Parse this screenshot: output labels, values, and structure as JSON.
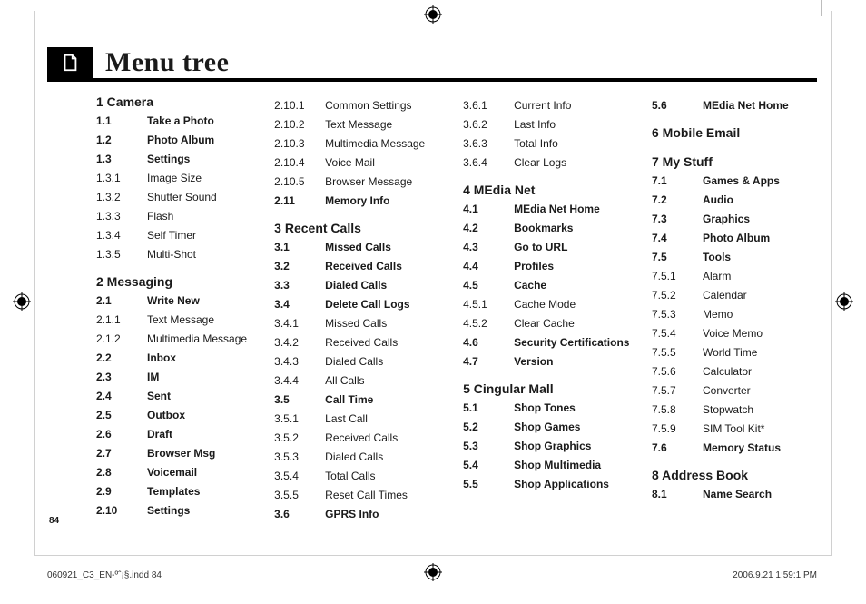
{
  "header": {
    "title": "Menu tree"
  },
  "page_number": "84",
  "footer": {
    "left": "060921_C3_EN-ºˆ¡§.indd   84",
    "right": "2006.9.21   1:59:1 PM"
  },
  "columns": [
    {
      "width_class": "col-1",
      "sections": [
        {
          "title": "1 Camera",
          "first": true,
          "items": [
            {
              "num": "1.1",
              "label": "Take a Photo",
              "bold": true
            },
            {
              "num": "1.2",
              "label": "Photo Album",
              "bold": true
            },
            {
              "num": "1.3",
              "label": "Settings",
              "bold": true
            },
            {
              "num": "1.3.1",
              "label": "Image Size",
              "bold": false
            },
            {
              "num": "1.3.2",
              "label": "Shutter Sound",
              "bold": false
            },
            {
              "num": "1.3.3",
              "label": "Flash",
              "bold": false
            },
            {
              "num": "1.3.4",
              "label": "Self Timer",
              "bold": false
            },
            {
              "num": "1.3.5",
              "label": "Multi-Shot",
              "bold": false
            }
          ]
        },
        {
          "title": "2 Messaging",
          "items": [
            {
              "num": "2.1",
              "label": "Write New",
              "bold": true
            },
            {
              "num": "2.1.1",
              "label": "Text Message",
              "bold": false
            },
            {
              "num": "2.1.2",
              "label": "Multimedia Message",
              "bold": false
            },
            {
              "num": "2.2",
              "label": "Inbox",
              "bold": true
            },
            {
              "num": "2.3",
              "label": "IM",
              "bold": true
            },
            {
              "num": "2.4",
              "label": "Sent",
              "bold": true
            },
            {
              "num": "2.5",
              "label": "Outbox",
              "bold": true
            },
            {
              "num": "2.6",
              "label": "Draft",
              "bold": true
            },
            {
              "num": "2.7",
              "label": "Browser Msg",
              "bold": true
            },
            {
              "num": "2.8",
              "label": "Voicemail",
              "bold": true
            },
            {
              "num": "2.9",
              "label": "Templates",
              "bold": true
            },
            {
              "num": "2.10",
              "label": "Settings",
              "bold": true
            }
          ]
        }
      ]
    },
    {
      "width_class": "col-2",
      "sections": [
        {
          "title": "",
          "first": true,
          "items": [
            {
              "num": "2.10.1",
              "label": "Common Settings",
              "bold": false
            },
            {
              "num": "2.10.2",
              "label": "Text Message",
              "bold": false
            },
            {
              "num": "2.10.3",
              "label": "Multimedia Message",
              "bold": false
            },
            {
              "num": "2.10.4",
              "label": "Voice Mail",
              "bold": false
            },
            {
              "num": "2.10.5",
              "label": "Browser Message",
              "bold": false
            },
            {
              "num": "2.11",
              "label": "Memory Info",
              "bold": true
            }
          ]
        },
        {
          "title": "3 Recent Calls",
          "items": [
            {
              "num": "3.1",
              "label": "Missed Calls",
              "bold": true
            },
            {
              "num": "3.2",
              "label": "Received Calls",
              "bold": true
            },
            {
              "num": "3.3",
              "label": "Dialed Calls",
              "bold": true
            },
            {
              "num": "3.4",
              "label": "Delete Call Logs",
              "bold": true
            },
            {
              "num": "3.4.1",
              "label": "Missed Calls",
              "bold": false
            },
            {
              "num": "3.4.2",
              "label": "Received Calls",
              "bold": false
            },
            {
              "num": "3.4.3",
              "label": "Dialed Calls",
              "bold": false
            },
            {
              "num": "3.4.4",
              "label": "All Calls",
              "bold": false
            },
            {
              "num": "3.5",
              "label": "Call Time",
              "bold": true
            },
            {
              "num": "3.5.1",
              "label": "Last Call",
              "bold": false
            },
            {
              "num": "3.5.2",
              "label": "Received Calls",
              "bold": false
            },
            {
              "num": "3.5.3",
              "label": "Dialed Calls",
              "bold": false
            },
            {
              "num": "3.5.4",
              "label": "Total Calls",
              "bold": false
            },
            {
              "num": "3.5.5",
              "label": "Reset Call Times",
              "bold": false
            },
            {
              "num": "3.6",
              "label": "GPRS Info",
              "bold": true
            }
          ]
        }
      ]
    },
    {
      "width_class": "col-3",
      "sections": [
        {
          "title": "",
          "first": true,
          "items": [
            {
              "num": "3.6.1",
              "label": "Current Info",
              "bold": false
            },
            {
              "num": "3.6.2",
              "label": "Last Info",
              "bold": false
            },
            {
              "num": "3.6.3",
              "label": "Total Info",
              "bold": false
            },
            {
              "num": "3.6.4",
              "label": "Clear Logs",
              "bold": false
            }
          ]
        },
        {
          "title": "4 MEdia Net",
          "items": [
            {
              "num": "4.1",
              "label": "MEdia Net Home",
              "bold": true
            },
            {
              "num": "4.2",
              "label": "Bookmarks",
              "bold": true
            },
            {
              "num": "4.3",
              "label": "Go to URL",
              "bold": true
            },
            {
              "num": "4.4",
              "label": "Profiles",
              "bold": true
            },
            {
              "num": "4.5",
              "label": "Cache",
              "bold": true
            },
            {
              "num": "4.5.1",
              "label": "Cache Mode",
              "bold": false
            },
            {
              "num": "4.5.2",
              "label": "Clear Cache",
              "bold": false
            },
            {
              "num": "4.6",
              "label": "Security Certifications",
              "bold": true
            },
            {
              "num": "4.7",
              "label": "Version",
              "bold": true
            }
          ]
        },
        {
          "title": "5 Cingular Mall",
          "items": [
            {
              "num": "5.1",
              "label": "Shop Tones",
              "bold": true
            },
            {
              "num": "5.2",
              "label": "Shop Games",
              "bold": true
            },
            {
              "num": "5.3",
              "label": "Shop Graphics",
              "bold": true
            },
            {
              "num": "5.4",
              "label": "Shop Multimedia",
              "bold": true
            },
            {
              "num": "5.5",
              "label": "Shop Applications",
              "bold": true
            }
          ]
        }
      ]
    },
    {
      "width_class": "col-4",
      "sections": [
        {
          "title": "",
          "first": true,
          "items": [
            {
              "num": "5.6",
              "label": "MEdia Net Home",
              "bold": true
            }
          ]
        },
        {
          "title": "6 Mobile Email",
          "items": []
        },
        {
          "title": "7 My Stuff",
          "items": [
            {
              "num": "7.1",
              "label": "Games & Apps",
              "bold": true
            },
            {
              "num": "7.2",
              "label": "Audio",
              "bold": true
            },
            {
              "num": "7.3",
              "label": "Graphics",
              "bold": true
            },
            {
              "num": "7.4",
              "label": "Photo Album",
              "bold": true
            },
            {
              "num": "7.5",
              "label": "Tools",
              "bold": true
            },
            {
              "num": "7.5.1",
              "label": "Alarm",
              "bold": false
            },
            {
              "num": "7.5.2",
              "label": "Calendar",
              "bold": false
            },
            {
              "num": "7.5.3",
              "label": "Memo",
              "bold": false
            },
            {
              "num": "7.5.4",
              "label": "Voice Memo",
              "bold": false
            },
            {
              "num": "7.5.5",
              "label": "World Time",
              "bold": false
            },
            {
              "num": "7.5.6",
              "label": "Calculator",
              "bold": false
            },
            {
              "num": "7.5.7",
              "label": "Converter",
              "bold": false
            },
            {
              "num": "7.5.8",
              "label": "Stopwatch",
              "bold": false
            },
            {
              "num": "7.5.9",
              "label": "SIM Tool Kit*",
              "bold": false
            },
            {
              "num": "7.6",
              "label": "Memory Status",
              "bold": true
            }
          ]
        },
        {
          "title": "8 Address Book",
          "items": [
            {
              "num": "8.1",
              "label": "Name Search",
              "bold": true
            }
          ]
        }
      ]
    }
  ]
}
